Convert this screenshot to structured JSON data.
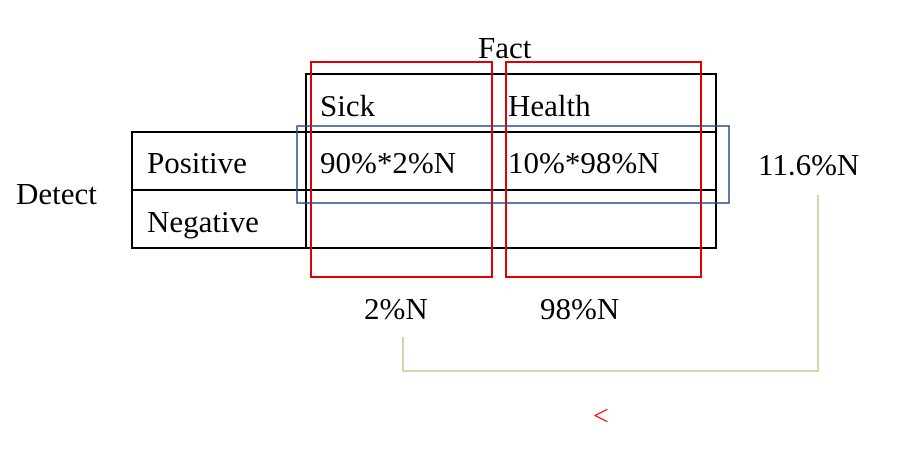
{
  "title": "Fact",
  "row_axis_label": "Detect",
  "columns": [
    "Sick",
    "Health"
  ],
  "rows": [
    {
      "label": "Positive",
      "cells": [
        "90%*2%N",
        "10%*98%N"
      ],
      "total": "11.6%N"
    },
    {
      "label": "Negative",
      "cells": [
        "",
        ""
      ]
    }
  ],
  "column_totals": [
    "2%N",
    "98%N"
  ],
  "comparison_symbol": "<",
  "colors": {
    "grid": "#000000",
    "highlight_columns": "#e00000",
    "highlight_row": "#2f4f8f",
    "connector": "#b5d38a",
    "comparison": "#ff0000"
  }
}
